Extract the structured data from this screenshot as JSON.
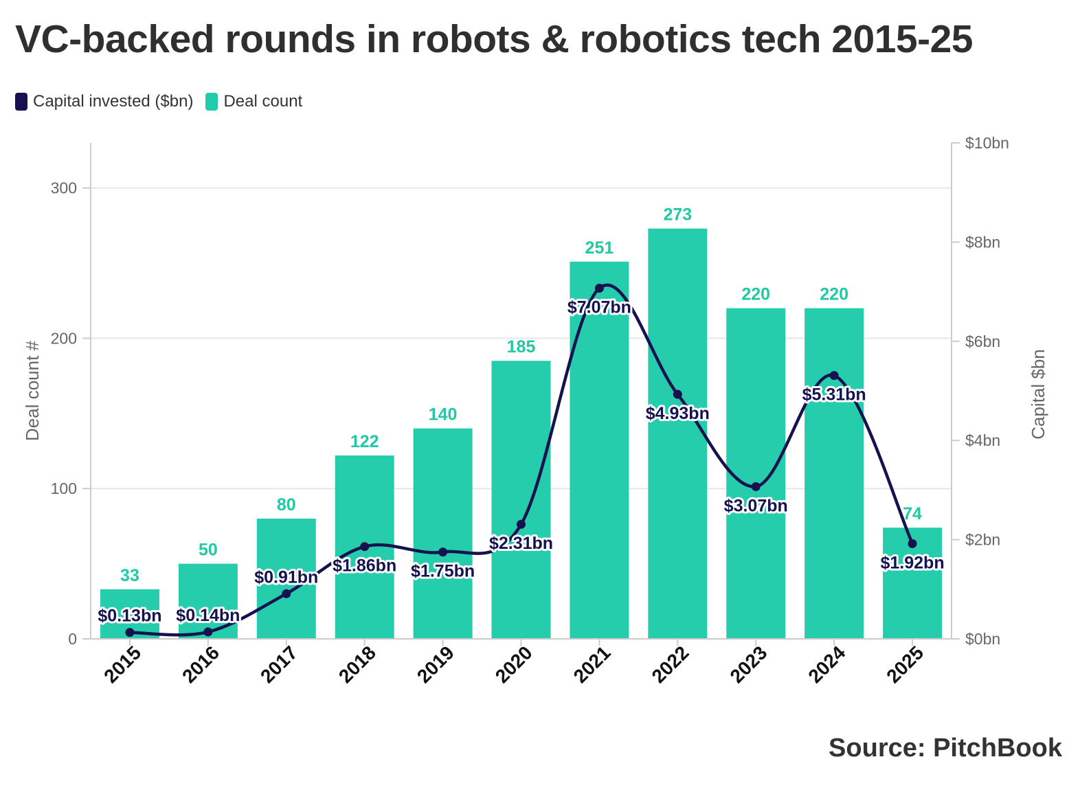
{
  "title": "VC-backed rounds in robots & robotics tech 2015-25",
  "legend": [
    {
      "label": "Capital invested ($bn)",
      "color": "#16124f"
    },
    {
      "label": "Deal count",
      "color": "#22ccaa"
    }
  ],
  "source": "Source: PitchBook",
  "chart_data": {
    "type": "bar",
    "title": "VC-backed rounds in robots & robotics tech 2015-25",
    "categories": [
      "2015",
      "2016",
      "2017",
      "2018",
      "2019",
      "2020",
      "2021",
      "2022",
      "2023",
      "2024",
      "2025"
    ],
    "series": [
      {
        "name": "Deal count",
        "type": "bar",
        "axis": "left",
        "color": "#22ccaa",
        "values": [
          33,
          50,
          80,
          122,
          140,
          185,
          251,
          273,
          220,
          220,
          74
        ],
        "labels": [
          "33",
          "50",
          "80",
          "122",
          "140",
          "185",
          "251",
          "273",
          "220",
          "220",
          "74"
        ]
      },
      {
        "name": "Capital invested ($bn)",
        "type": "line",
        "axis": "right",
        "color": "#16124f",
        "values": [
          0.13,
          0.14,
          0.91,
          1.86,
          1.75,
          2.31,
          7.07,
          4.93,
          3.07,
          5.31,
          1.92
        ],
        "labels": [
          "$0.13bn",
          "$0.14bn",
          "$0.91bn",
          "$1.86bn",
          "$1.75bn",
          "$2.31bn",
          "$7.07bn",
          "$4.93bn",
          "$3.07bn",
          "$5.31bn",
          "$1.92bn"
        ]
      }
    ],
    "left_axis": {
      "label": "Deal count #",
      "range": [
        0,
        330
      ],
      "ticks": [
        0,
        100,
        200,
        300
      ],
      "tick_labels": [
        "0",
        "100",
        "200",
        "300"
      ]
    },
    "right_axis": {
      "label": "Capital $bn",
      "range": [
        0,
        10
      ],
      "ticks": [
        0,
        2,
        4,
        6,
        8,
        10
      ],
      "tick_labels": [
        "$0bn",
        "$2bn",
        "$4bn",
        "$6bn",
        "$8bn",
        "$10bn"
      ]
    },
    "grid": true,
    "legend_position": "top-left"
  }
}
